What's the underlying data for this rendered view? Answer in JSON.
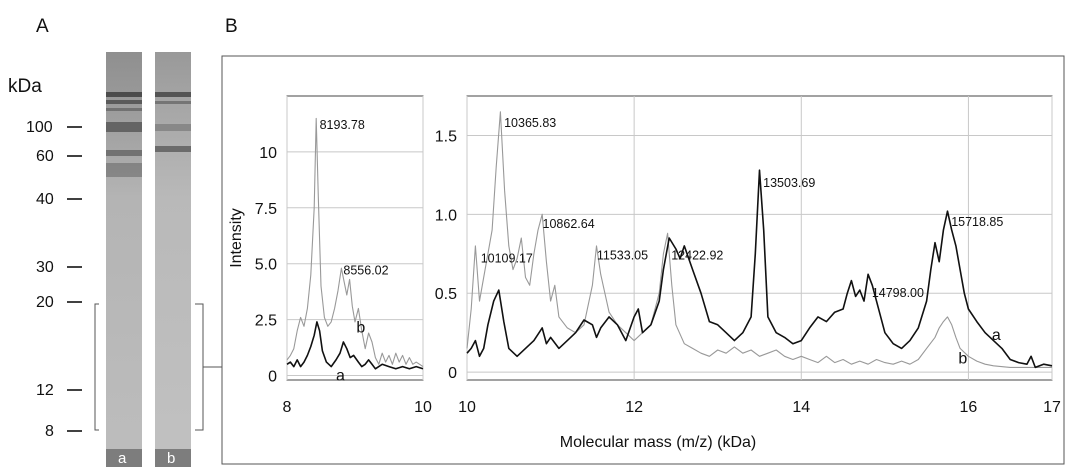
{
  "figure": {
    "panel_a_label": "A",
    "panel_b_label": "B"
  },
  "panel_a": {
    "unit_label": "kDa",
    "ladder": [
      "100",
      "60",
      "40",
      "30",
      "20",
      "12",
      "8"
    ],
    "lane_labels": [
      "a",
      "b"
    ]
  },
  "chart_data": [
    {
      "type": "line",
      "xlabel": "",
      "ylabel": "Intensity",
      "xlim": [
        8,
        10
      ],
      "ylim": [
        -0.2,
        12.5
      ],
      "xticks": [
        "8",
        "10"
      ],
      "yticks": [
        "0",
        "2.5",
        "5.0",
        "7.5",
        "10"
      ],
      "grid": true,
      "series": [
        {
          "name": "a",
          "color": "#111111",
          "points": [
            [
              8.0,
              0.5
            ],
            [
              8.05,
              0.6
            ],
            [
              8.1,
              0.4
            ],
            [
              8.15,
              0.7
            ],
            [
              8.2,
              0.4
            ],
            [
              8.25,
              0.6
            ],
            [
              8.3,
              0.9
            ],
            [
              8.35,
              1.3
            ],
            [
              8.4,
              1.8
            ],
            [
              8.44,
              2.4
            ],
            [
              8.48,
              2.0
            ],
            [
              8.52,
              1.1
            ],
            [
              8.58,
              0.6
            ],
            [
              8.65,
              0.4
            ],
            [
              8.72,
              0.7
            ],
            [
              8.78,
              1.0
            ],
            [
              8.83,
              1.5
            ],
            [
              8.88,
              1.2
            ],
            [
              8.93,
              0.8
            ],
            [
              8.98,
              0.9
            ],
            [
              9.05,
              0.6
            ],
            [
              9.1,
              0.4
            ],
            [
              9.15,
              0.5
            ],
            [
              9.2,
              0.7
            ],
            [
              9.25,
              0.5
            ],
            [
              9.3,
              0.3
            ],
            [
              9.4,
              0.5
            ],
            [
              9.5,
              0.4
            ],
            [
              9.6,
              0.3
            ],
            [
              9.7,
              0.4
            ],
            [
              9.8,
              0.3
            ],
            [
              9.9,
              0.4
            ],
            [
              10.0,
              0.3
            ]
          ]
        },
        {
          "name": "b",
          "color": "#999999",
          "points": [
            [
              8.0,
              0.7
            ],
            [
              8.05,
              0.9
            ],
            [
              8.1,
              1.2
            ],
            [
              8.15,
              2.0
            ],
            [
              8.2,
              2.6
            ],
            [
              8.25,
              2.2
            ],
            [
              8.3,
              3.0
            ],
            [
              8.35,
              4.5
            ],
            [
              8.4,
              7.5
            ],
            [
              8.43,
              11.5
            ],
            [
              8.46,
              8.0
            ],
            [
              8.5,
              4.0
            ],
            [
              8.55,
              2.6
            ],
            [
              8.6,
              2.2
            ],
            [
              8.65,
              2.4
            ],
            [
              8.7,
              3.0
            ],
            [
              8.75,
              3.8
            ],
            [
              8.8,
              4.8
            ],
            [
              8.84,
              4.2
            ],
            [
              8.88,
              3.6
            ],
            [
              8.92,
              4.3
            ],
            [
              8.96,
              3.1
            ],
            [
              9.0,
              2.4
            ],
            [
              9.05,
              3.0
            ],
            [
              9.1,
              2.0
            ],
            [
              9.15,
              1.2
            ],
            [
              9.2,
              1.9
            ],
            [
              9.25,
              1.5
            ],
            [
              9.3,
              0.8
            ],
            [
              9.35,
              0.5
            ],
            [
              9.4,
              1.0
            ],
            [
              9.45,
              0.6
            ],
            [
              9.5,
              0.9
            ],
            [
              9.55,
              0.5
            ],
            [
              9.6,
              1.0
            ],
            [
              9.65,
              0.6
            ],
            [
              9.7,
              0.9
            ],
            [
              9.75,
              0.5
            ],
            [
              9.8,
              0.8
            ],
            [
              9.85,
              0.5
            ],
            [
              9.9,
              0.6
            ],
            [
              10.0,
              0.4
            ]
          ]
        }
      ],
      "annotations": [
        {
          "text": "8193.78",
          "x": 8.45,
          "y": 11.2
        },
        {
          "text": "8556.02",
          "x": 8.8,
          "y": 4.7
        },
        {
          "text": "b",
          "x": 9.02,
          "y": 2.1
        },
        {
          "text": "a",
          "x": 8.72,
          "y": -0.05
        }
      ]
    },
    {
      "type": "line",
      "xlabel": "Molecular mass (m/z) (kDa)",
      "ylabel": "",
      "xlim": [
        10,
        17
      ],
      "ylim": [
        -0.05,
        1.75
      ],
      "xticks": [
        "10",
        "12",
        "14",
        "16",
        "17"
      ],
      "yticks": [
        "0",
        "0.5",
        "1.0",
        "1.5"
      ],
      "grid": true,
      "series": [
        {
          "name": "a",
          "color": "#111111",
          "points": [
            [
              10.0,
              0.12
            ],
            [
              10.05,
              0.15
            ],
            [
              10.1,
              0.2
            ],
            [
              10.15,
              0.1
            ],
            [
              10.2,
              0.15
            ],
            [
              10.25,
              0.3
            ],
            [
              10.32,
              0.45
            ],
            [
              10.38,
              0.52
            ],
            [
              10.44,
              0.32
            ],
            [
              10.5,
              0.15
            ],
            [
              10.6,
              0.1
            ],
            [
              10.7,
              0.15
            ],
            [
              10.8,
              0.2
            ],
            [
              10.9,
              0.28
            ],
            [
              10.95,
              0.18
            ],
            [
              11.0,
              0.22
            ],
            [
              11.1,
              0.15
            ],
            [
              11.2,
              0.2
            ],
            [
              11.3,
              0.25
            ],
            [
              11.4,
              0.33
            ],
            [
              11.5,
              0.3
            ],
            [
              11.55,
              0.22
            ],
            [
              11.6,
              0.28
            ],
            [
              11.7,
              0.35
            ],
            [
              11.8,
              0.3
            ],
            [
              11.9,
              0.2
            ],
            [
              12.0,
              0.35
            ],
            [
              12.05,
              0.4
            ],
            [
              12.1,
              0.25
            ],
            [
              12.2,
              0.3
            ],
            [
              12.3,
              0.45
            ],
            [
              12.35,
              0.65
            ],
            [
              12.42,
              0.85
            ],
            [
              12.5,
              0.78
            ],
            [
              12.55,
              0.72
            ],
            [
              12.6,
              0.8
            ],
            [
              12.7,
              0.65
            ],
            [
              12.8,
              0.5
            ],
            [
              12.9,
              0.32
            ],
            [
              13.0,
              0.3
            ],
            [
              13.1,
              0.25
            ],
            [
              13.2,
              0.2
            ],
            [
              13.3,
              0.25
            ],
            [
              13.4,
              0.35
            ],
            [
              13.45,
              0.75
            ],
            [
              13.5,
              1.28
            ],
            [
              13.55,
              0.9
            ],
            [
              13.6,
              0.35
            ],
            [
              13.7,
              0.25
            ],
            [
              13.8,
              0.22
            ],
            [
              13.9,
              0.18
            ],
            [
              14.0,
              0.2
            ],
            [
              14.1,
              0.28
            ],
            [
              14.2,
              0.35
            ],
            [
              14.3,
              0.32
            ],
            [
              14.4,
              0.38
            ],
            [
              14.5,
              0.4
            ],
            [
              14.55,
              0.5
            ],
            [
              14.6,
              0.58
            ],
            [
              14.65,
              0.48
            ],
            [
              14.7,
              0.52
            ],
            [
              14.75,
              0.45
            ],
            [
              14.8,
              0.62
            ],
            [
              14.85,
              0.55
            ],
            [
              14.9,
              0.45
            ],
            [
              15.0,
              0.25
            ],
            [
              15.1,
              0.18
            ],
            [
              15.2,
              0.15
            ],
            [
              15.3,
              0.2
            ],
            [
              15.4,
              0.28
            ],
            [
              15.5,
              0.45
            ],
            [
              15.55,
              0.65
            ],
            [
              15.6,
              0.82
            ],
            [
              15.65,
              0.7
            ],
            [
              15.7,
              0.9
            ],
            [
              15.75,
              1.02
            ],
            [
              15.8,
              0.9
            ],
            [
              15.85,
              0.8
            ],
            [
              15.9,
              0.65
            ],
            [
              15.95,
              0.5
            ],
            [
              16.0,
              0.4
            ],
            [
              16.1,
              0.32
            ],
            [
              16.2,
              0.25
            ],
            [
              16.3,
              0.2
            ],
            [
              16.4,
              0.15
            ],
            [
              16.5,
              0.08
            ],
            [
              16.6,
              0.06
            ],
            [
              16.7,
              0.05
            ],
            [
              16.75,
              0.1
            ],
            [
              16.8,
              0.03
            ],
            [
              16.9,
              0.05
            ],
            [
              17.0,
              0.04
            ]
          ]
        },
        {
          "name": "b",
          "color": "#999999",
          "points": [
            [
              10.0,
              0.15
            ],
            [
              10.05,
              0.4
            ],
            [
              10.1,
              0.8
            ],
            [
              10.15,
              0.45
            ],
            [
              10.2,
              0.6
            ],
            [
              10.25,
              0.75
            ],
            [
              10.3,
              0.9
            ],
            [
              10.35,
              1.3
            ],
            [
              10.4,
              1.65
            ],
            [
              10.45,
              1.15
            ],
            [
              10.5,
              0.8
            ],
            [
              10.55,
              0.65
            ],
            [
              10.6,
              0.72
            ],
            [
              10.65,
              0.85
            ],
            [
              10.7,
              0.6
            ],
            [
              10.75,
              0.55
            ],
            [
              10.8,
              0.75
            ],
            [
              10.85,
              0.9
            ],
            [
              10.9,
              1.0
            ],
            [
              10.95,
              0.7
            ],
            [
              11.0,
              0.45
            ],
            [
              11.05,
              0.55
            ],
            [
              11.1,
              0.35
            ],
            [
              11.2,
              0.28
            ],
            [
              11.3,
              0.25
            ],
            [
              11.4,
              0.3
            ],
            [
              11.5,
              0.55
            ],
            [
              11.55,
              0.8
            ],
            [
              11.6,
              0.62
            ],
            [
              11.65,
              0.5
            ],
            [
              11.7,
              0.38
            ],
            [
              11.8,
              0.3
            ],
            [
              11.9,
              0.25
            ],
            [
              12.0,
              0.2
            ],
            [
              12.1,
              0.25
            ],
            [
              12.2,
              0.3
            ],
            [
              12.3,
              0.5
            ],
            [
              12.35,
              0.75
            ],
            [
              12.4,
              0.88
            ],
            [
              12.45,
              0.55
            ],
            [
              12.5,
              0.3
            ],
            [
              12.6,
              0.18
            ],
            [
              12.7,
              0.15
            ],
            [
              12.8,
              0.12
            ],
            [
              12.9,
              0.1
            ],
            [
              13.0,
              0.14
            ],
            [
              13.1,
              0.12
            ],
            [
              13.2,
              0.16
            ],
            [
              13.3,
              0.12
            ],
            [
              13.4,
              0.14
            ],
            [
              13.5,
              0.1
            ],
            [
              13.6,
              0.12
            ],
            [
              13.7,
              0.14
            ],
            [
              13.8,
              0.1
            ],
            [
              13.9,
              0.08
            ],
            [
              14.0,
              0.1
            ],
            [
              14.1,
              0.08
            ],
            [
              14.2,
              0.06
            ],
            [
              14.3,
              0.1
            ],
            [
              14.4,
              0.06
            ],
            [
              14.5,
              0.08
            ],
            [
              14.6,
              0.05
            ],
            [
              14.7,
              0.07
            ],
            [
              14.8,
              0.05
            ],
            [
              14.9,
              0.08
            ],
            [
              15.0,
              0.06
            ],
            [
              15.1,
              0.05
            ],
            [
              15.2,
              0.07
            ],
            [
              15.3,
              0.05
            ],
            [
              15.4,
              0.08
            ],
            [
              15.5,
              0.15
            ],
            [
              15.6,
              0.22
            ],
            [
              15.65,
              0.28
            ],
            [
              15.7,
              0.32
            ],
            [
              15.75,
              0.35
            ],
            [
              15.8,
              0.3
            ],
            [
              15.85,
              0.22
            ],
            [
              15.9,
              0.15
            ],
            [
              16.0,
              0.1
            ],
            [
              16.1,
              0.07
            ],
            [
              16.2,
              0.05
            ],
            [
              16.3,
              0.04
            ],
            [
              16.5,
              0.03
            ],
            [
              16.7,
              0.03
            ],
            [
              17.0,
              0.03
            ]
          ]
        }
      ],
      "annotations": [
        {
          "text": "10365.83",
          "x": 10.42,
          "y": 1.58
        },
        {
          "text": "10109.17",
          "x": 10.14,
          "y": 0.72
        },
        {
          "text": "10862.64",
          "x": 10.88,
          "y": 0.94
        },
        {
          "text": "11533.05",
          "x": 11.53,
          "y": 0.74
        },
        {
          "text": "12422.92",
          "x": 12.42,
          "y": 0.74
        },
        {
          "text": "13503.69",
          "x": 13.52,
          "y": 1.2
        },
        {
          "text": "14798.00",
          "x": 14.82,
          "y": 0.5
        },
        {
          "text": "15718.85",
          "x": 15.77,
          "y": 0.95
        },
        {
          "text": "a",
          "x": 16.28,
          "y": 0.23
        },
        {
          "text": "b",
          "x": 15.88,
          "y": 0.08
        }
      ]
    }
  ]
}
